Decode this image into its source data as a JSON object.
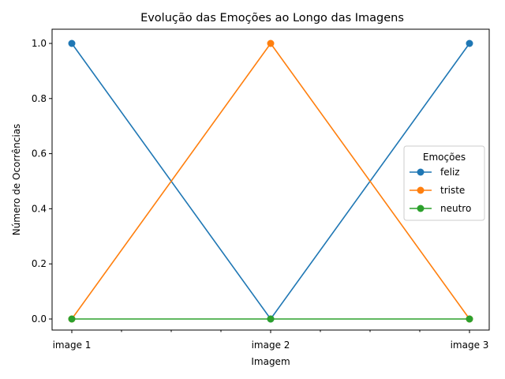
{
  "chart_data": {
    "type": "line",
    "title": "Evolução das Emoções ao Longo das Imagens",
    "xlabel": "Imagem",
    "ylabel": "Número de Ocorrências",
    "categories": [
      "image 1",
      "image 2",
      "image 3"
    ],
    "ylim": [
      -0.05,
      1.05
    ],
    "yticks": [
      "0.0",
      "0.2",
      "0.4",
      "0.6",
      "0.8",
      "1.0"
    ],
    "grid": false,
    "legend": {
      "title": "Emoções",
      "placement": "center-right"
    },
    "series": [
      {
        "name": "feliz",
        "values": [
          1,
          0,
          1
        ],
        "color": "#1f77b4"
      },
      {
        "name": "triste",
        "values": [
          0,
          1,
          0
        ],
        "color": "#ff7f0e"
      },
      {
        "name": "neutro",
        "values": [
          0,
          0,
          0
        ],
        "color": "#2ca02c"
      }
    ]
  }
}
